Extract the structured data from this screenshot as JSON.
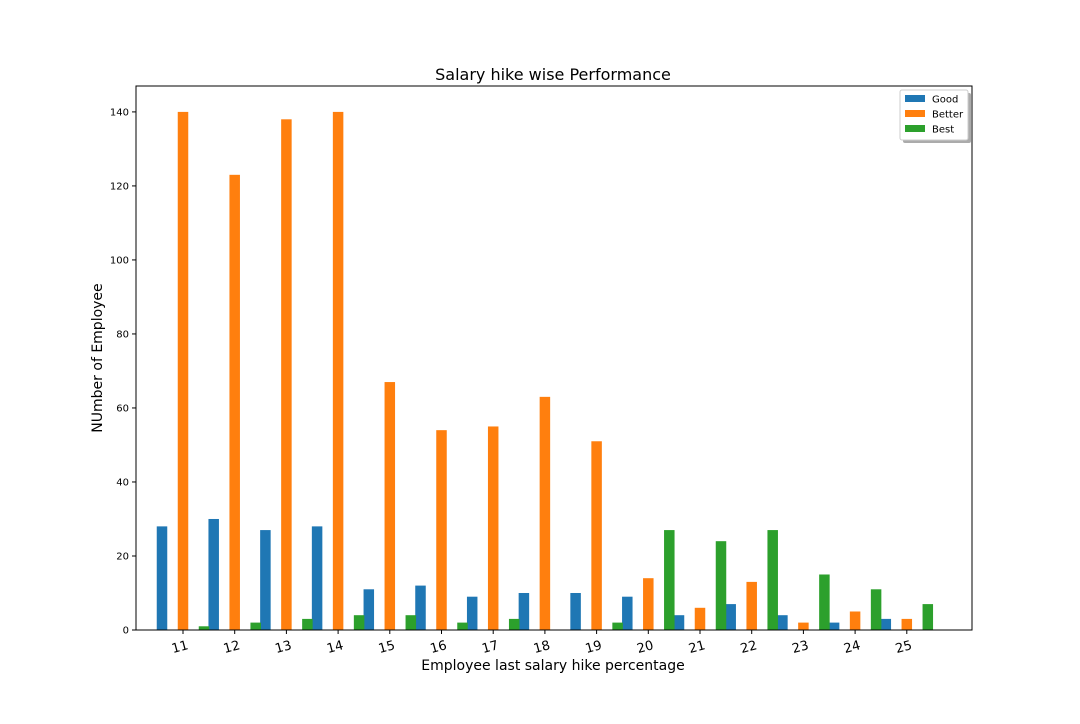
{
  "colors": {
    "good": "#1f77b4",
    "better": "#ff7f0e",
    "best": "#2ca02c"
  },
  "chart_data": {
    "type": "bar",
    "title": "Salary hike wise Performance",
    "xlabel": "Employee last salary hike percentage",
    "ylabel": "NUmber of Employee",
    "categories": [
      "11",
      "12",
      "13",
      "14",
      "15",
      "16",
      "17",
      "18",
      "19",
      "20",
      "21",
      "22",
      "23",
      "24",
      "25"
    ],
    "series": [
      {
        "name": "Good",
        "color": "#1f77b4",
        "values": [
          28,
          30,
          27,
          28,
          11,
          12,
          9,
          10,
          10,
          9,
          4,
          7,
          4,
          2,
          3
        ]
      },
      {
        "name": "Better",
        "color": "#ff7f0e",
        "values": [
          140,
          123,
          138,
          140,
          67,
          54,
          55,
          63,
          51,
          14,
          6,
          13,
          2,
          5,
          3
        ]
      },
      {
        "name": "Best",
        "color": "#2ca02c",
        "values": [
          1,
          2,
          3,
          4,
          4,
          2,
          3,
          0,
          2,
          27,
          24,
          27,
          15,
          11,
          7
        ]
      }
    ],
    "ylim": [
      0,
      147
    ],
    "yticks": [
      "0",
      "20",
      "40",
      "60",
      "80",
      "100",
      "120",
      "140"
    ],
    "grid": false,
    "legend_position": "top-right"
  }
}
